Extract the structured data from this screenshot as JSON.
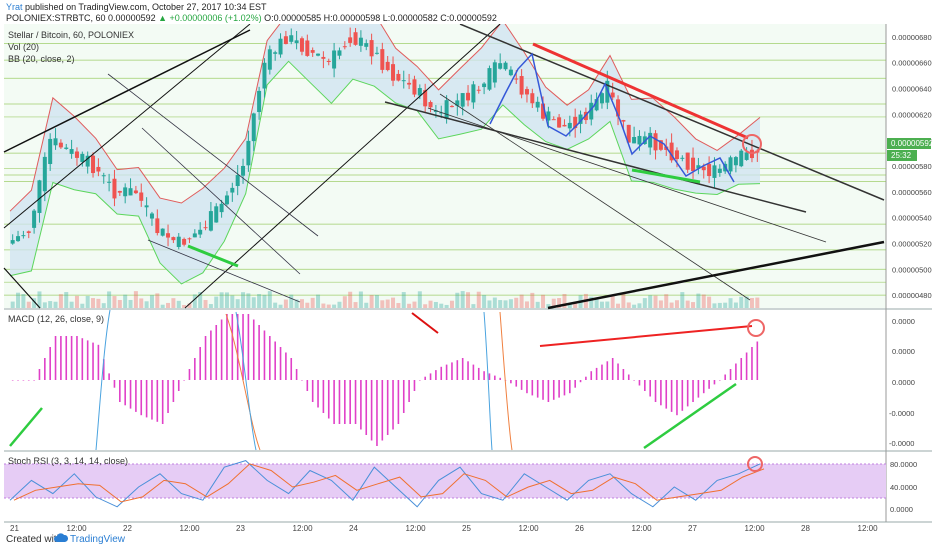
{
  "header": {
    "user": "Yrat",
    "published": "published on TradingView.com, October 27, 2017 10:34 EST",
    "symbol": "POLONIEX:STRBTC, 60",
    "last": "0.00000592",
    "change": "▲ +0.00000006 (+1.02%)",
    "ohlc": "O:0.00000585 H:0.00000598 L:0.00000582 C:0.00000592"
  },
  "legend": {
    "title": "Stellar / Bitcoin, 60, POLONIEX",
    "vol": "Vol (20)",
    "bb": "BB (20, close, 2)"
  },
  "panes": {
    "macd_label": "MACD (12, 26, close, 9)",
    "rsi_label": "Stoch RSI (3, 3, 14, 14, close)"
  },
  "price_axis": {
    "ticks": [
      "0.00000680",
      "0.00000660",
      "0.00000640",
      "0.00000620",
      "0.00000600",
      "0.00000580",
      "0.00000560",
      "0.00000540",
      "0.00000520",
      "0.00000500",
      "0.00000480"
    ],
    "last_label": "0.00000592",
    "countdown": "25:32"
  },
  "macd_axis": {
    "ticks": [
      "0.0000",
      "0.0000",
      "0.0000",
      "-0.0000",
      "-0.0000"
    ]
  },
  "rsi_axis": {
    "ticks": [
      "80.0000",
      "40.0000",
      "0.0000"
    ]
  },
  "time_axis": {
    "labels": [
      "21",
      "12:00",
      "22",
      "12:00",
      "23",
      "12:00",
      "24",
      "12:00",
      "25",
      "12:00",
      "26",
      "12:00",
      "27",
      "12:00",
      "28",
      "12:00"
    ]
  },
  "footer": {
    "created": "Created with",
    "brand": "TradingView"
  },
  "colors": {
    "up": "#26a69a",
    "down": "#ef5350",
    "bb_fill": "#cfe3f2",
    "bb_line": "#e05c5c",
    "macd_hist": "#e040c8",
    "rsi_fill": "#e6ccf5"
  },
  "chart_data": {
    "type": "candlestick",
    "title": "Stellar / Bitcoin, 60, POLONIEX",
    "xlabel": "",
    "ylabel": "",
    "ylim": [
      4.7e-06,
      6.9e-06
    ],
    "x_range": [
      "2017-10-21",
      "2017-10-28 12:00"
    ],
    "series": [
      {
        "name": "STRBTC",
        "values": [
          5.2e-06,
          5.3e-06,
          6e-06,
          5.9e-06,
          5.8e-06,
          5.6e-06,
          5.6e-06,
          5.3e-06,
          5.2e-06,
          5.3e-06,
          5.5e-06,
          5.8e-06,
          6.6e-06,
          6.8e-06,
          6.7e-06,
          6.6e-06,
          6.8e-06,
          6.7e-06,
          6.5e-06,
          6.4e-06,
          6.2e-06,
          6.3e-06,
          6.4e-06,
          6.6e-06,
          6.4e-06,
          6.2e-06,
          6.1e-06,
          6.2e-06,
          6.4e-06,
          6e-06,
          6e-06,
          5.9e-06,
          5.8e-06,
          5.75e-06,
          5.85e-06,
          5.92e-06
        ]
      },
      {
        "name": "MACD",
        "values": [
          0,
          0,
          1,
          1,
          0.8,
          -0.5,
          -0.8,
          -1,
          0,
          1,
          1.5,
          1.5,
          1,
          0.5,
          -0.5,
          -1,
          -1,
          -1.5,
          -1,
          0,
          0.3,
          0.5,
          0.2,
          0,
          -0.3,
          -0.5,
          -0.3,
          0.2,
          0.5,
          0,
          -0.5,
          -0.8,
          -0.4,
          0,
          0.5,
          1
        ]
      },
      {
        "name": "Stoch RSI",
        "values": [
          30,
          60,
          40,
          70,
          35,
          20,
          50,
          70,
          40,
          30,
          80,
          90,
          60,
          40,
          75,
          60,
          30,
          80,
          50,
          20,
          60,
          80,
          40,
          30,
          70,
          50,
          30,
          60,
          70,
          40,
          20,
          50,
          30,
          60,
          70,
          85
        ]
      }
    ]
  }
}
